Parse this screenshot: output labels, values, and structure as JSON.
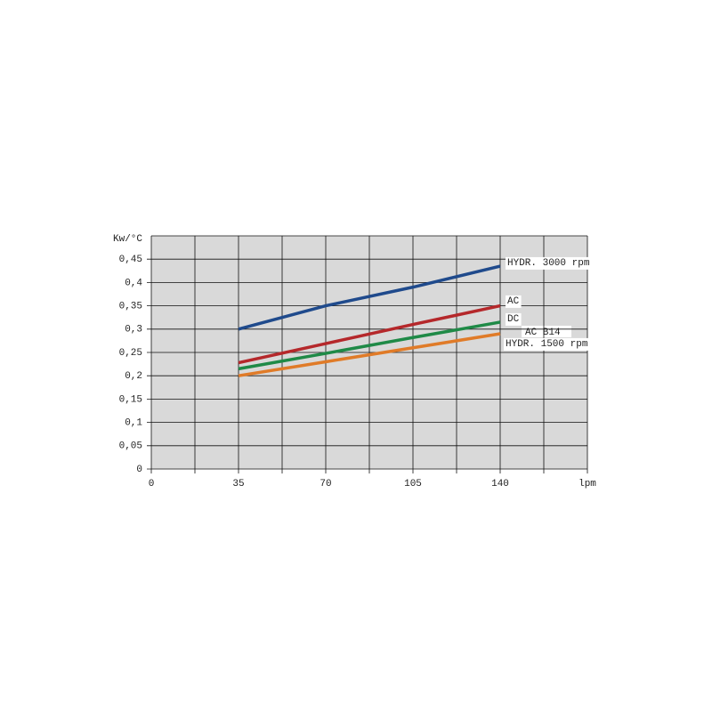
{
  "chart_data": {
    "type": "line",
    "y_label": "Kw/°C",
    "annotation": "AC B14",
    "x": [
      35,
      70,
      105,
      140
    ],
    "xlim": [
      0,
      175
    ],
    "xticks": [
      0,
      35,
      70,
      105,
      140,
      {
        "value": 175,
        "label": "lpm"
      }
    ],
    "xminor": [
      17.5,
      52.5,
      87.5,
      122.5,
      157.5
    ],
    "ylim": [
      0,
      0.5
    ],
    "yticks": [
      0,
      {
        "value": 0.05,
        "label": "0,05"
      },
      {
        "value": 0.1,
        "label": "0,1"
      },
      {
        "value": 0.15,
        "label": "0,15"
      },
      {
        "value": 0.2,
        "label": "0,2"
      },
      {
        "value": 0.25,
        "label": "0,25"
      },
      {
        "value": 0.3,
        "label": "0,3"
      },
      {
        "value": 0.35,
        "label": "0,35"
      },
      {
        "value": 0.4,
        "label": "0,4"
      },
      {
        "value": 0.45,
        "label": "0,45"
      }
    ],
    "grid": true,
    "series": [
      {
        "name": "HYDR. 3000 rpm",
        "color": "#1f4a8c",
        "values": [
          0.3,
          0.35,
          0.39,
          0.435
        ]
      },
      {
        "name": "AC",
        "color": "#b5282b",
        "values": [
          0.228,
          0.269,
          0.31,
          0.35
        ]
      },
      {
        "name": "DC",
        "color": "#1f8a47",
        "values": [
          0.215,
          0.248,
          0.282,
          0.315
        ]
      },
      {
        "name": "HYDR. 1500 rpm",
        "color": "#e07b28",
        "values": [
          0.2,
          0.23,
          0.26,
          0.29
        ]
      }
    ]
  }
}
